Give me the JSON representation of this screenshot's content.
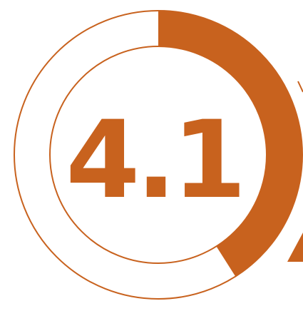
{
  "rating": {
    "value_text": "4.1",
    "value": 4.1,
    "max": 10,
    "fraction": 0.41
  },
  "colors": {
    "accent": "#c8621e",
    "ring_track": "#ffffff",
    "background": "#ffffff"
  }
}
